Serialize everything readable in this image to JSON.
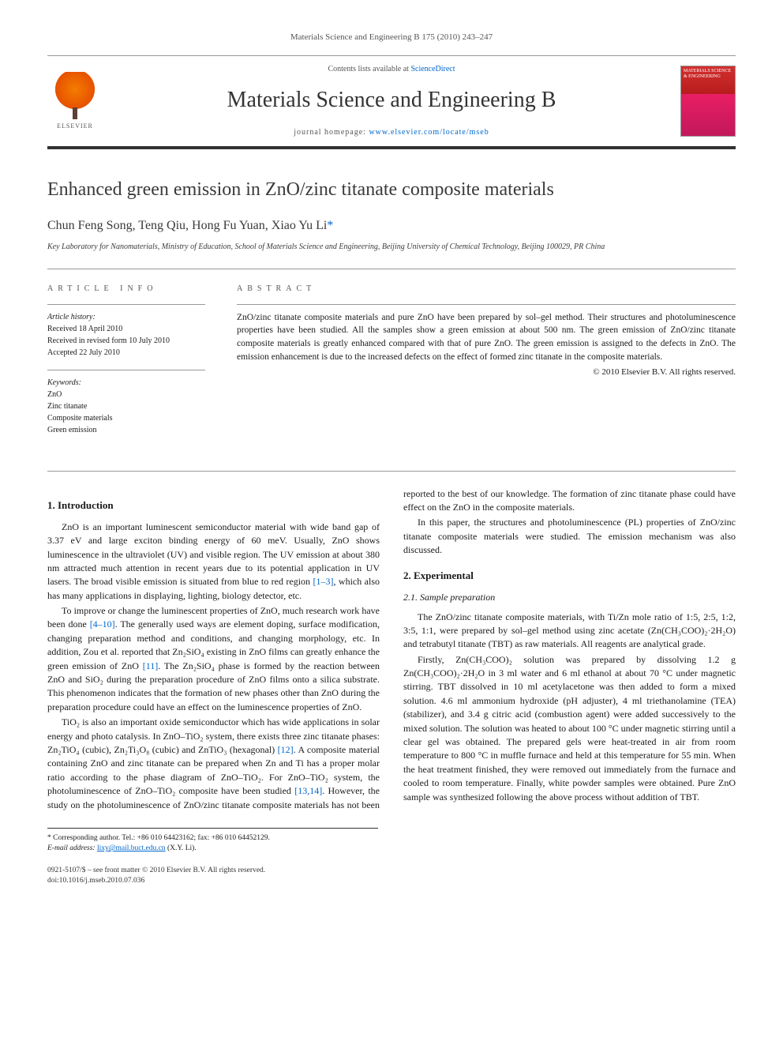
{
  "header": {
    "citation": "Materials Science and Engineering B 175 (2010) 243–247",
    "contents_prefix": "Contents lists available at ",
    "contents_link": "ScienceDirect",
    "journal_title": "Materials Science and Engineering B",
    "homepage_prefix": "journal homepage: ",
    "homepage_url": "www.elsevier.com/locate/mseb",
    "elsevier_label": "ELSEVIER",
    "cover_text": "MATERIALS SCIENCE & ENGINEERING"
  },
  "article": {
    "title": "Enhanced green emission in ZnO/zinc titanate composite materials",
    "authors": "Chun Feng Song, Teng Qiu, Hong Fu Yuan, Xiao Yu Li",
    "corr_marker": "*",
    "affiliation": "Key Laboratory for Nanomaterials, Ministry of Education, School of Materials Science and Engineering, Beijing University of Chemical Technology, Beijing 100029, PR China"
  },
  "info": {
    "label": "ARTICLE INFO",
    "history_heading": "Article history:",
    "history_lines": [
      "Received 18 April 2010",
      "Received in revised form 10 July 2010",
      "Accepted 22 July 2010"
    ],
    "keywords_heading": "Keywords:",
    "keywords": [
      "ZnO",
      "Zinc titanate",
      "Composite materials",
      "Green emission"
    ]
  },
  "abstract": {
    "label": "ABSTRACT",
    "text": "ZnO/zinc titanate composite materials and pure ZnO have been prepared by sol–gel method. Their structures and photoluminescence properties have been studied. All the samples show a green emission at about 500 nm. The green emission of ZnO/zinc titanate composite materials is greatly enhanced compared with that of pure ZnO. The green emission is assigned to the defects in ZnO. The emission enhancement is due to the increased defects on the effect of formed zinc titanate in the composite materials.",
    "copyright": "© 2010 Elsevier B.V. All rights reserved."
  },
  "body": {
    "s1_title": "1. Introduction",
    "s1_p1a": "ZnO is an important luminescent semiconductor material with wide band gap of 3.37 eV and large exciton binding energy of 60 meV. Usually, ZnO shows luminescence in the ultraviolet (UV) and visible region. The UV emission at about 380 nm attracted much attention in recent years due to its potential application in UV lasers. The broad visible emission is situated from blue to red region ",
    "s1_p1_ref1": "[1–3]",
    "s1_p1b": ", which also has many applications in displaying, lighting, biology detector, etc.",
    "s1_p2a": "To improve or change the luminescent properties of ZnO, much research work have been done ",
    "s1_p2_ref1": "[4–10]",
    "s1_p2b": ". The generally used ways are element doping, surface modification, changing preparation method and conditions, and changing morphology, etc. In addition, Zou et al. reported that Zn₂SiO₄ existing in ZnO films can greatly enhance the green emission of ZnO ",
    "s1_p2_ref2": "[11]",
    "s1_p2c": ". The Zn₂SiO₄ phase is formed by the reaction between ZnO and SiO₂ during the preparation procedure of ZnO films onto a silica substrate. This phenomenon indicates that the formation of new phases other than ZnO during the preparation procedure could have an effect on the luminescence properties of ZnO.",
    "s1_p3a": "TiO₂ is also an important oxide semiconductor which has wide applications in solar energy and photo catalysis. In ZnO–TiO₂ system, there exists three zinc titanate phases: Zn₂TiO₄ (cubic), Zn₂Ti₃O₈ (cubic) and ZnTiO₃ (hexagonal) ",
    "s1_p3_ref1": "[12]",
    "s1_p3b": ". A composite material containing ZnO and zinc titanate can be prepared when Zn and Ti has a proper molar ratio according to the phase diagram of ZnO–TiO₂. For ZnO–TiO₂ system, the photoluminescence of ZnO–TiO₂ composite have been studied ",
    "s1_p3_ref2": "[13,14]",
    "s1_p3c": ". However, the study on the photoluminescence of ZnO/zinc titanate composite materials has not been reported to the best of our knowledge. The formation of zinc titanate phase could have effect on the ZnO in the composite materials.",
    "s1_p4": "In this paper, the structures and photoluminescence (PL) properties of ZnO/zinc titanate composite materials were studied. The emission mechanism was also discussed.",
    "s2_title": "2. Experimental",
    "s21_title": "2.1. Sample preparation",
    "s21_p1": "The ZnO/zinc titanate composite materials, with Ti/Zn mole ratio of 1:5, 2:5, 1:2, 3:5, 1:1, were prepared by sol–gel method using zinc acetate (Zn(CH₃COO)₂·2H₂O) and tetrabutyl titanate (TBT) as raw materials. All reagents are analytical grade.",
    "s21_p2": "Firstly, Zn(CH₃COO)₂ solution was prepared by dissolving 1.2 g Zn(CH₃COO)₂·2H₂O in 3 ml water and 6 ml ethanol at about 70 °C under magnetic stirring. TBT dissolved in 10 ml acetylacetone was then added to form a mixed solution. 4.6 ml ammonium hydroxide (pH adjuster), 4 ml triethanolamine (TEA) (stabilizer), and 3.4 g citric acid (combustion agent) were added successively to the mixed solution. The solution was heated to about 100 °C under magnetic stirring until a clear gel was obtained. The prepared gels were heat-treated in air from room temperature to 800 °C in muffle furnace and held at this temperature for 55 min. When the heat treatment finished, they were removed out immediately from the furnace and cooled to room temperature. Finally, white powder samples were obtained. Pure ZnO sample was synthesized following the above process without addition of TBT."
  },
  "footnote": {
    "corr_label": "* Corresponding author. Tel.: +86 010 64423162; fax: +86 010 64452129.",
    "email_label": "E-mail address:",
    "email": "lixy@mail.buct.edu.cn",
    "email_suffix": "(X.Y. Li)."
  },
  "footer": {
    "issn_line": "0921-5107/$ – see front matter © 2010 Elsevier B.V. All rights reserved.",
    "doi_line": "doi:10.1016/j.mseb.2010.07.036"
  },
  "colors": {
    "link": "#0066cc",
    "rule": "#999999",
    "bottom_rule": "#333333",
    "text": "#1a1a1a"
  }
}
